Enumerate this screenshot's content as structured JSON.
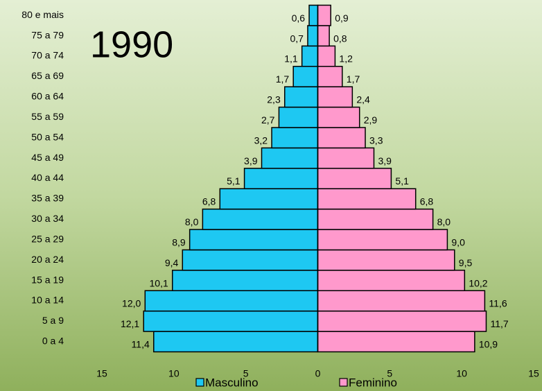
{
  "chart_data": {
    "type": "pyramid",
    "annotation": "1990",
    "categories": [
      "0 a 4",
      "5 a 9",
      "10 a 14",
      "15 a 19",
      "20 a 24",
      "25 a 29",
      "30 a 34",
      "35 a 39",
      "40 a 44",
      "45 a 49",
      "50 a 54",
      "55 a 59",
      "60 a 64",
      "65 a 69",
      "70 a 74",
      "75 a 79",
      "80 e mais"
    ],
    "series": [
      {
        "name": "Masculino",
        "color": "#1ec8f2",
        "side": "left",
        "values": [
          11.4,
          12.1,
          12.0,
          10.1,
          9.4,
          8.9,
          8.0,
          6.8,
          5.1,
          3.9,
          3.2,
          2.7,
          2.3,
          1.7,
          1.1,
          0.7,
          0.6
        ],
        "value_labels": [
          "11,4",
          "12,1",
          "12,0",
          "10,1",
          "9,4",
          "8,9",
          "8,0",
          "6,8",
          "5,1",
          "3,9",
          "3,2",
          "2,7",
          "2,3",
          "1,7",
          "1,1",
          "0,7",
          "0,6"
        ]
      },
      {
        "name": "Feminino",
        "color": "#ff99cc",
        "side": "right",
        "values": [
          10.9,
          11.7,
          11.6,
          10.2,
          9.5,
          9.0,
          8.0,
          6.8,
          5.1,
          3.9,
          3.3,
          2.9,
          2.4,
          1.7,
          1.2,
          0.8,
          0.9
        ],
        "value_labels": [
          "10,9",
          "11,7",
          "11,6",
          "10,2",
          "9,5",
          "9,0",
          "8,0",
          "6,8",
          "5,1",
          "3,9",
          "3,3",
          "2,9",
          "2,4",
          "1,7",
          "1,2",
          "0,8",
          "0,9"
        ]
      }
    ],
    "xlim": [
      -15,
      15
    ],
    "xticks": [
      {
        "value": -15,
        "label": "15"
      },
      {
        "value": -10,
        "label": "10"
      },
      {
        "value": -5,
        "label": "5"
      },
      0,
      5,
      10,
      15
    ],
    "legend": "bottom"
  }
}
